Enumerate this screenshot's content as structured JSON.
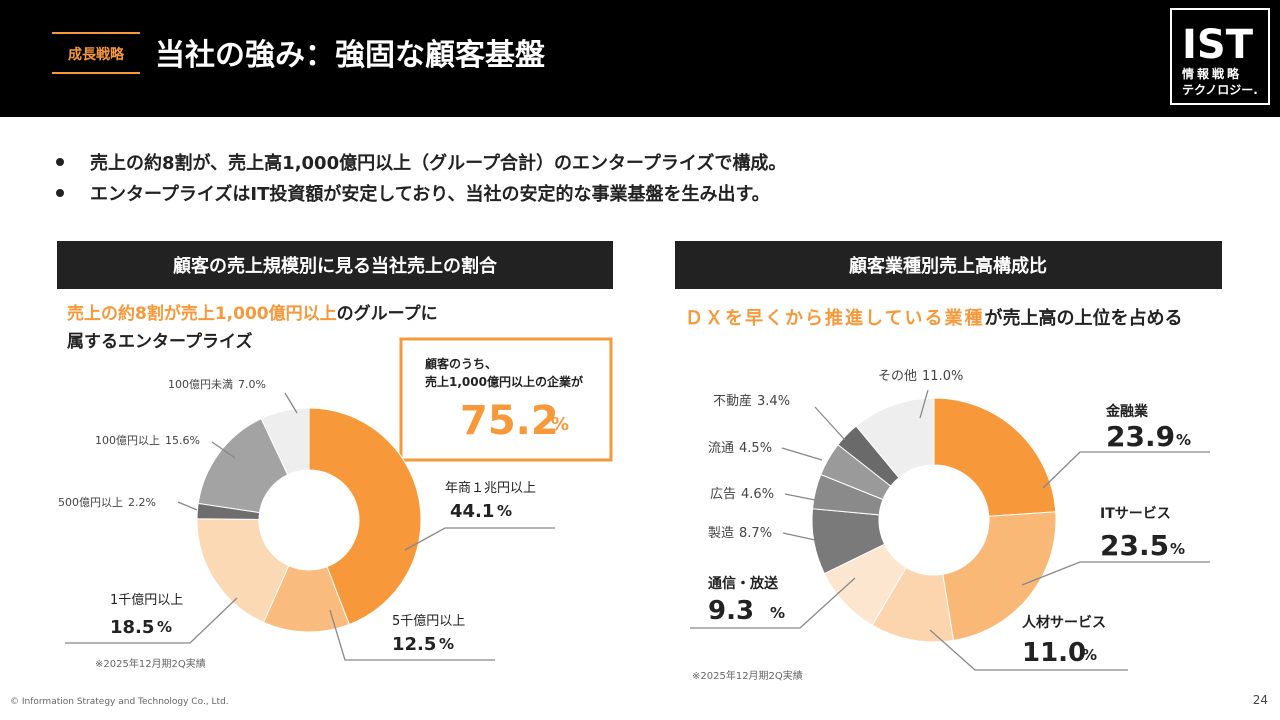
{
  "header": {
    "tag": "成長戦略",
    "title": "当社の強み：強固な顧客基盤",
    "logo": "IST",
    "logo_sub1": "情報戦略",
    "logo_sub2": "テクノロジー."
  },
  "bullets": [
    "売上の約8割が、売上高1,000億円以上（グループ合計）のエンタープライズで構成。",
    "エンタープライズはIT投資額が安定しており、当社の安定的な事業基盤を生み出す。"
  ],
  "chart_data": [
    {
      "type": "pie",
      "title": "顧客の売上規模別に見る当社売上の割合",
      "subtitle_highlight": "売上の約8割が売上1,000億円以上",
      "subtitle_rest": "のグループに",
      "subtitle_line2": "属するエンタープライズ",
      "callout": {
        "line1": "顧客のうち、",
        "line2": "売上1,000億円以上の企業が",
        "value": 75.2,
        "unit": "%"
      },
      "categories": [
        "年商１兆円以上",
        "5千億円以上",
        "1千億円以上",
        "500億円以上",
        "100億円以上",
        "100億円未満"
      ],
      "values": [
        44.1,
        12.5,
        18.5,
        2.2,
        15.6,
        7.0
      ],
      "value_labels": [
        "44.1",
        "12.5",
        "18.5",
        "2.2%",
        "15.6%",
        "7.0%"
      ],
      "unit": "%",
      "colors": [
        "#f7983a",
        "#f9bc7e",
        "#fcd9b5",
        "#6e6e6e",
        "#a3a3a3",
        "#eeeeee"
      ],
      "note": "※2025年12月期2Q実績"
    },
    {
      "type": "pie",
      "title": "顧客業種別売上高構成比",
      "subtitle_highlight": "ＤＸを早くから推進している業種",
      "subtitle_rest": "が売上高の上位を占める",
      "categories": [
        "金融業",
        "ITサービス",
        "人材サービス",
        "通信・放送",
        "製造",
        "広告",
        "流通",
        "不動産",
        "その他"
      ],
      "values": [
        23.9,
        23.5,
        11.0,
        9.3,
        8.7,
        4.6,
        4.5,
        3.4,
        11.0
      ],
      "value_labels": [
        "23.9",
        "23.5",
        "11.0",
        "9.3",
        "8.7%",
        "4.6%",
        "4.5%",
        "3.4%",
        "11.0%"
      ],
      "unit": "%",
      "colors": [
        "#f7983a",
        "#fab877",
        "#fcd5ae",
        "#fde6cf",
        "#7a7a7a",
        "#8a8a8a",
        "#9a9a9a",
        "#6a6a6a",
        "#eeeeee"
      ],
      "note": "※2025年12月期2Q実績"
    }
  ],
  "footer": {
    "copyright": "© Information Strategy and Technology Co., Ltd.",
    "page": "24"
  }
}
